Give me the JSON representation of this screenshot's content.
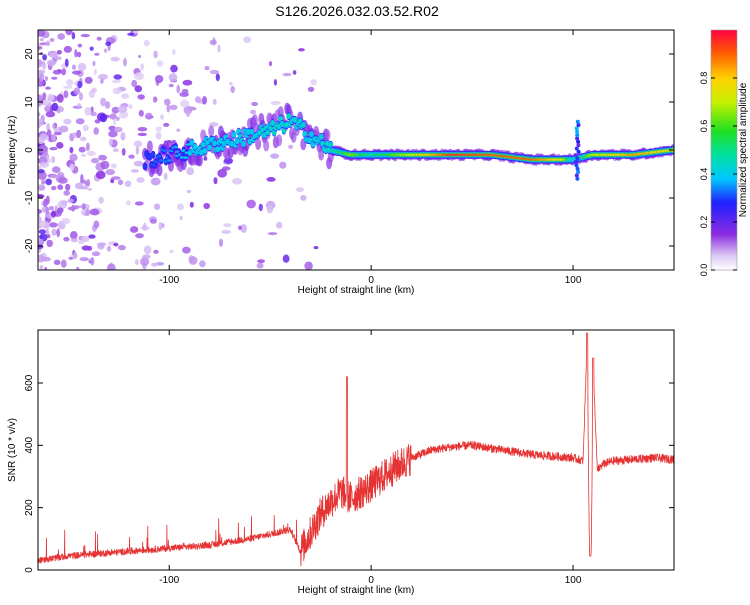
{
  "title": "S126.2026.032.03.52.R02",
  "colors": {
    "snr_line": "#e53333",
    "axis": "#000000",
    "background": "#ffffff"
  },
  "chart_data": [
    {
      "type": "heatmap",
      "name": "spectrogram",
      "xlabel": "Height of straight line (km)",
      "ylabel": "Frequency (Hz)",
      "xlim": [
        -165,
        150
      ],
      "ylim": [
        -25,
        25
      ],
      "x_ticks": [
        -100,
        0,
        100
      ],
      "y_ticks": [
        -20,
        -10,
        0,
        10,
        20
      ],
      "colorbar": {
        "label": "Normalized spectral amplitude",
        "range": [
          0,
          1
        ],
        "ticks": [
          0.0,
          0.2,
          0.4,
          0.6,
          0.8
        ],
        "colormap": "rainbow (white-violet-blue-cyan-green-yellow-red)"
      },
      "ridge": [
        {
          "x": -110,
          "f": -2,
          "a": 0.3
        },
        {
          "x": -100,
          "f": -1,
          "a": 0.35
        },
        {
          "x": -90,
          "f": 0,
          "a": 0.4
        },
        {
          "x": -80,
          "f": 1,
          "a": 0.4
        },
        {
          "x": -70,
          "f": 2,
          "a": 0.4
        },
        {
          "x": -60,
          "f": 3,
          "a": 0.4
        },
        {
          "x": -50,
          "f": 4,
          "a": 0.45
        },
        {
          "x": -40,
          "f": 6,
          "a": 0.45
        },
        {
          "x": -30,
          "f": 3,
          "a": 0.4
        },
        {
          "x": -20,
          "f": 0,
          "a": 0.45
        },
        {
          "x": -10,
          "f": -1,
          "a": 0.65
        },
        {
          "x": 0,
          "f": -1,
          "a": 0.5
        },
        {
          "x": 20,
          "f": -1,
          "a": 0.7
        },
        {
          "x": 40,
          "f": -1,
          "a": 0.95
        },
        {
          "x": 60,
          "f": -1,
          "a": 0.9
        },
        {
          "x": 80,
          "f": -2,
          "a": 0.9
        },
        {
          "x": 95,
          "f": -2,
          "a": 0.75
        },
        {
          "x": 100,
          "f": -2,
          "a": 0.4
        },
        {
          "x": 110,
          "f": -1,
          "a": 0.7
        },
        {
          "x": 130,
          "f": -1,
          "a": 0.85
        },
        {
          "x": 150,
          "f": 0,
          "a": 0.75
        }
      ]
    },
    {
      "type": "line",
      "name": "snr",
      "xlabel": "Height of straight line (km)",
      "ylabel": "SNR (10 * v/v)",
      "xlim": [
        -165,
        150
      ],
      "ylim": [
        0,
        770
      ],
      "x_ticks": [
        -100,
        0,
        100
      ],
      "y_ticks": [
        0,
        200,
        400,
        600
      ],
      "x": [
        -165,
        -150,
        -120,
        -100,
        -80,
        -60,
        -40,
        -35,
        -25,
        -20,
        -15,
        -10,
        0,
        10,
        20,
        30,
        40,
        50,
        60,
        70,
        80,
        90,
        100,
        105,
        107,
        108,
        109,
        110,
        112,
        115,
        120,
        130,
        140,
        150
      ],
      "values": [
        30,
        45,
        60,
        70,
        80,
        100,
        130,
        60,
        180,
        220,
        250,
        230,
        270,
        320,
        360,
        385,
        395,
        400,
        390,
        380,
        370,
        365,
        360,
        350,
        750,
        120,
        60,
        650,
        320,
        340,
        350,
        355,
        360,
        355
      ],
      "spikes": [
        {
          "x": -12,
          "value": 620
        },
        {
          "x": 107,
          "value": 760
        },
        {
          "x": 110,
          "value": 680
        },
        {
          "x": 108.5,
          "value": 45
        }
      ]
    }
  ]
}
